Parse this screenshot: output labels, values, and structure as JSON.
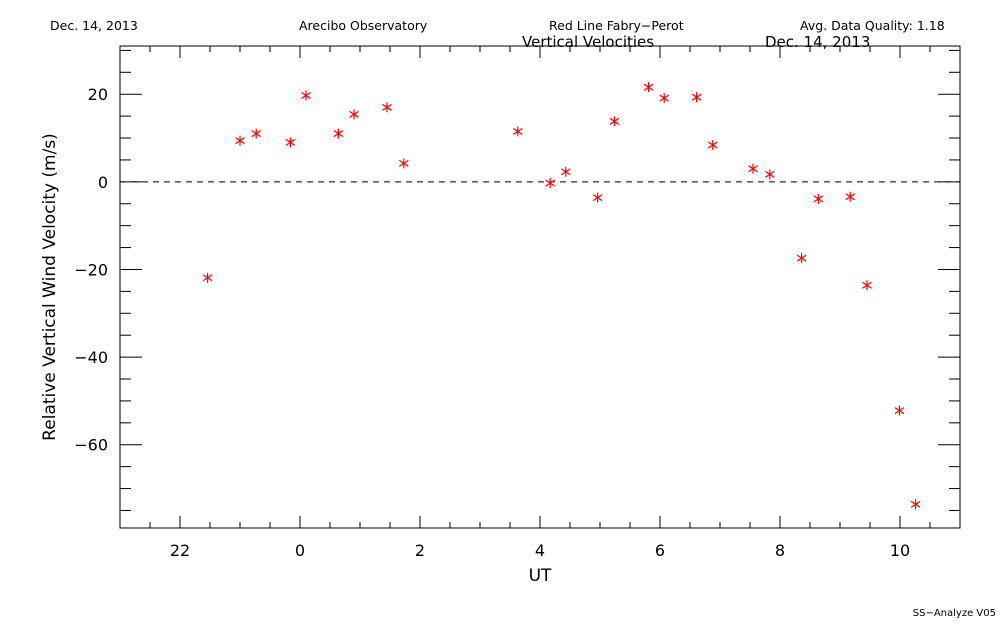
{
  "header": {
    "date": "Dec. 14, 2013",
    "observatory": "Arecibo Observatory",
    "instrument": "Red Line Fabry−Perot",
    "quality": "Avg. Data Quality: 1.18"
  },
  "subtitle": {
    "title": "Vertical Velocities",
    "date": "Dec. 14, 2013"
  },
  "footer": "SS−Analyze V05",
  "chart_data": {
    "type": "scatter",
    "title": "Vertical Velocities",
    "xlabel": "UT",
    "ylabel": "Relative Vertical Wind Velocity (m/s)",
    "xlim": [
      21.0,
      35.0
    ],
    "ylim": [
      -79.0,
      31.0
    ],
    "x_ticks": [
      {
        "v": 22,
        "label": "22"
      },
      {
        "v": 24,
        "label": "0"
      },
      {
        "v": 26,
        "label": "2"
      },
      {
        "v": 28,
        "label": "4"
      },
      {
        "v": 30,
        "label": "6"
      },
      {
        "v": 32,
        "label": "8"
      },
      {
        "v": 34,
        "label": "10"
      }
    ],
    "y_ticks": [
      {
        "v": 20,
        "label": "20"
      },
      {
        "v": 0,
        "label": "0"
      },
      {
        "v": -20,
        "label": "−20"
      },
      {
        "v": -40,
        "label": "−40"
      },
      {
        "v": -60,
        "label": "−60"
      }
    ],
    "reference_line": 0,
    "marker": "asterisk",
    "marker_color": "#ff0000",
    "series": [
      {
        "x": [
          22.46,
          23.0,
          23.27,
          23.84,
          24.1,
          24.64,
          24.9,
          25.45,
          25.73,
          27.63,
          28.17,
          28.43,
          28.96,
          29.24,
          29.81,
          30.07,
          30.61,
          30.88,
          31.55,
          31.83,
          32.36,
          32.64,
          33.17,
          33.45,
          33.99,
          34.26
        ],
        "y": [
          -21.9,
          9.4,
          11.0,
          9.0,
          19.7,
          11.0,
          15.4,
          17.0,
          4.2,
          11.5,
          -0.3,
          2.3,
          -3.6,
          13.8,
          21.6,
          19.1,
          19.3,
          8.4,
          3.0,
          1.7,
          -17.4,
          -3.9,
          -3.4,
          -23.6,
          -52.2,
          -73.6
        ]
      }
    ]
  }
}
